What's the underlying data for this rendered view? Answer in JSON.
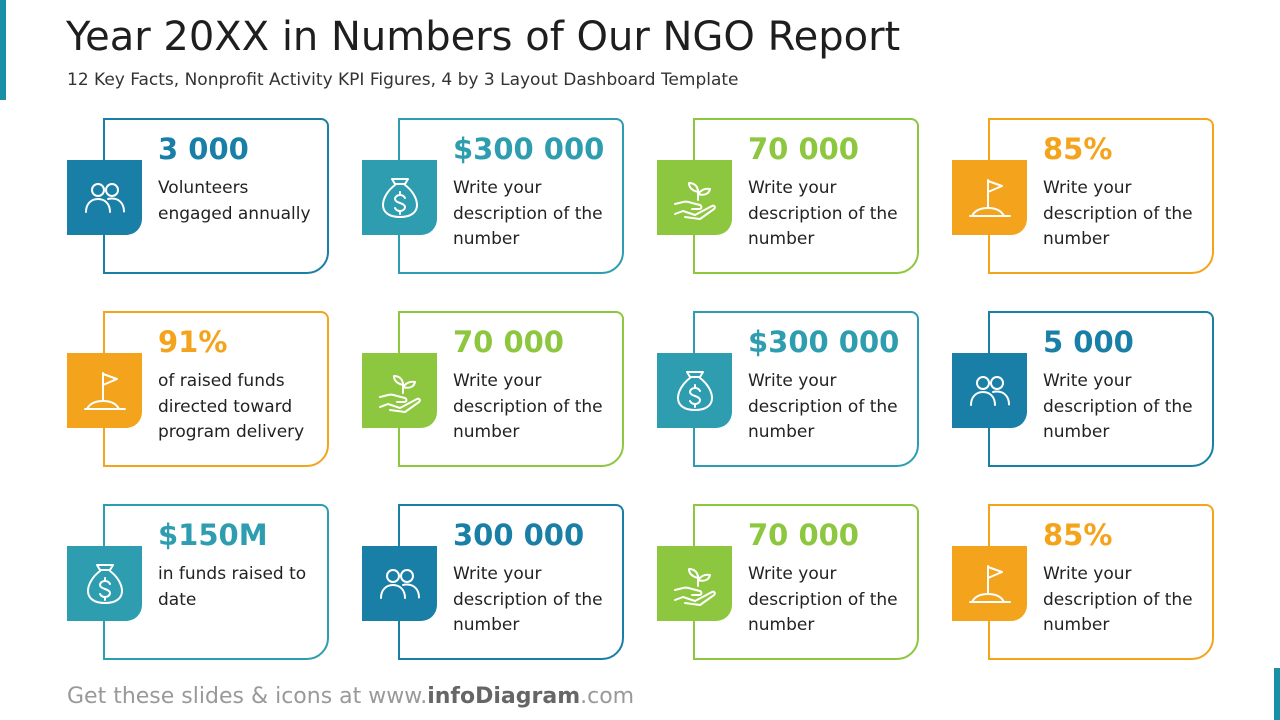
{
  "header": {
    "title": "Year 20XX in Numbers of Our NGO Report",
    "subtitle": "12 Key Facts, Nonprofit Activity KPI Figures, 4 by 3 Layout Dashboard Template"
  },
  "cards": [
    {
      "value": "3 000",
      "description": "Volunteers engaged annually",
      "color": "#1a7fa6"
    },
    {
      "value": "$300 000",
      "description": "Write your description of the number",
      "color": "#2e9db0"
    },
    {
      "value": "70 000",
      "description": "Write your description of the number",
      "color": "#8dc63f"
    },
    {
      "value": "85%",
      "description": "Write your description of the number",
      "color": "#f4a41c"
    },
    {
      "value": "91%",
      "description": "of raised funds directed toward program delivery",
      "color": "#f4a41c"
    },
    {
      "value": "70 000",
      "description": "Write your description of the number",
      "color": "#8dc63f"
    },
    {
      "value": "$300 000",
      "description": "Write your description of the number",
      "color": "#2e9db0"
    },
    {
      "value": "5 000",
      "description": "Write your description of the number",
      "color": "#1a7fa6"
    },
    {
      "value": "$150M",
      "description": "in funds raised to date",
      "color": "#2e9db0"
    },
    {
      "value": "300 000",
      "description": "Write your description of the number",
      "color": "#1a7fa6"
    },
    {
      "value": "70 000",
      "description": "Write your description of the number",
      "color": "#8dc63f"
    },
    {
      "value": "85%",
      "description": "Write your description of the number",
      "color": "#f4a41c"
    }
  ],
  "footer": {
    "prefix": "Get these slides & icons at www.",
    "brand": "infoDiagram",
    "suffix": ".com"
  }
}
